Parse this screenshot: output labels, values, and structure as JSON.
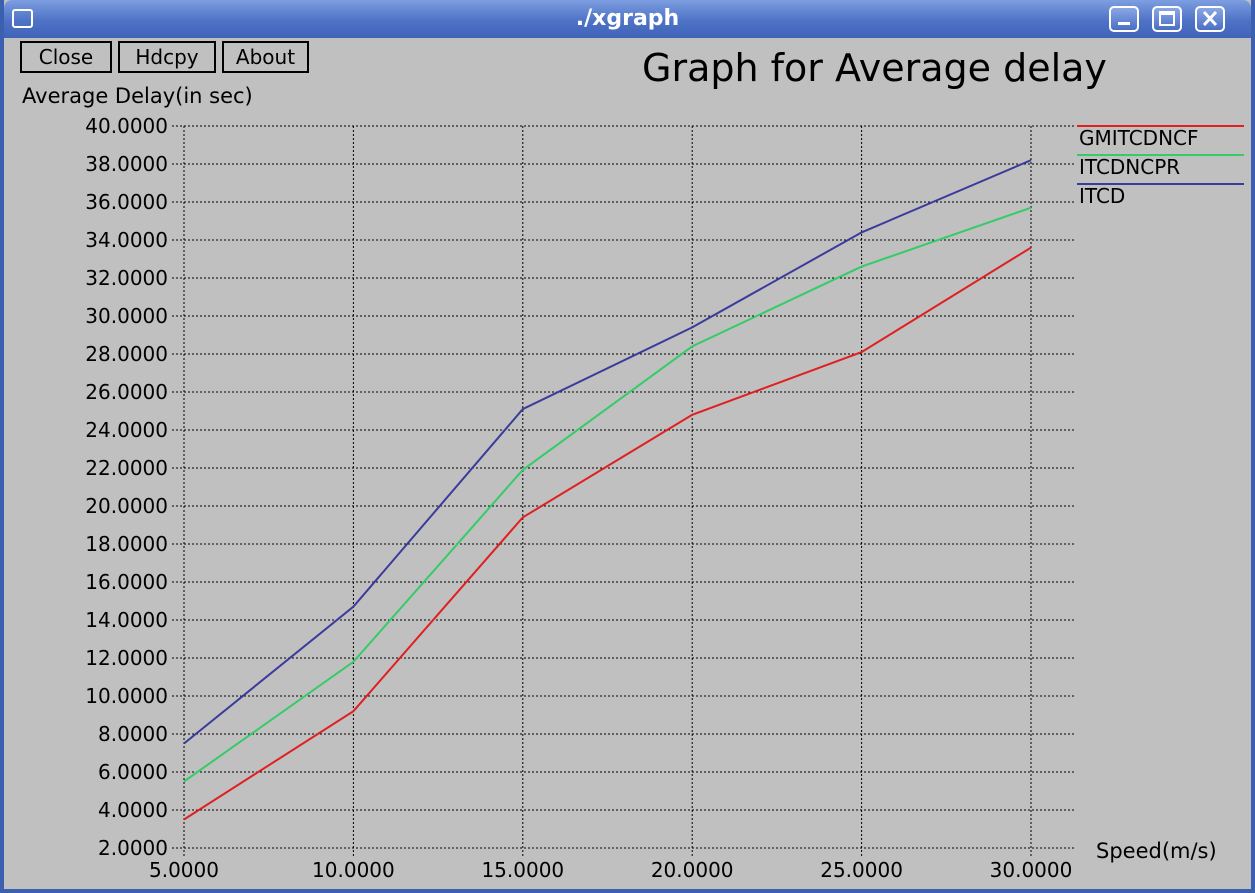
{
  "window": {
    "title": "./xgraph",
    "menu_icon": "window-menu-icon",
    "controls": [
      "minimize-icon",
      "maximize-icon",
      "close-icon"
    ],
    "titlebar_color": "#4e72c6"
  },
  "toolbar": {
    "close_label": "Close",
    "hdcpy_label": "Hdcpy",
    "about_label": "About"
  },
  "chart_data": {
    "type": "line",
    "title": "Graph for Average delay",
    "ylabel": "Average Delay(in sec)",
    "xlabel": "Speed(m/s)",
    "xlim": [
      5,
      30
    ],
    "ylim": [
      2,
      40
    ],
    "x_ticks": [
      "5.0000",
      "10.0000",
      "15.0000",
      "20.0000",
      "25.0000",
      "30.0000"
    ],
    "y_ticks": [
      "2.0000",
      "4.0000",
      "6.0000",
      "8.0000",
      "10.0000",
      "12.0000",
      "14.0000",
      "16.0000",
      "18.0000",
      "20.0000",
      "22.0000",
      "24.0000",
      "26.0000",
      "28.0000",
      "30.0000",
      "32.0000",
      "34.0000",
      "36.0000",
      "38.0000",
      "40.0000"
    ],
    "grid": true,
    "legend_position": "top-right",
    "x": [
      5,
      10,
      15,
      20,
      25,
      30
    ],
    "series": [
      {
        "name": "GMITCDNCF",
        "color": "#e02020",
        "values": [
          3.5,
          9.2,
          19.4,
          24.8,
          28.1,
          33.6
        ]
      },
      {
        "name": "ITCDNCPR",
        "color": "#33cc66",
        "values": [
          5.5,
          11.8,
          21.9,
          28.4,
          32.6,
          35.7
        ]
      },
      {
        "name": "ITCD",
        "color": "#3b3b9c",
        "values": [
          7.5,
          14.7,
          25.1,
          29.4,
          34.4,
          38.2
        ]
      }
    ]
  }
}
